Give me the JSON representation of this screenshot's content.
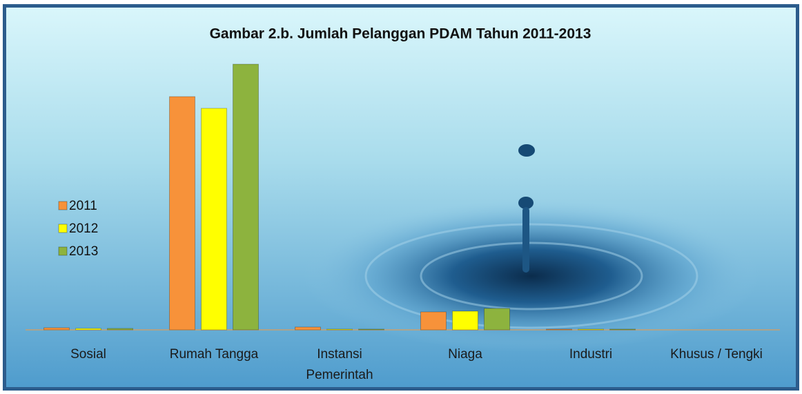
{
  "chart_data": {
    "type": "bar",
    "title": "Gambar 2.b. Jumlah Pelanggan PDAM Tahun 2011-2013",
    "categories": [
      "Sosial",
      "Rumah Tangga",
      "Instansi Pemerintah",
      "Niaga",
      "Industri",
      "Khusus / Tengki"
    ],
    "series": [
      {
        "name": "2011",
        "color": "#f7923a",
        "values": [
          3,
          338,
          4,
          26,
          1,
          0
        ]
      },
      {
        "name": "2012",
        "color": "#ffff00",
        "values": [
          2,
          321,
          1,
          27,
          1,
          0
        ]
      },
      {
        "name": "2013",
        "color": "#8db33e",
        "values": [
          2,
          385,
          1,
          31,
          1,
          0
        ]
      }
    ],
    "legend": "left"
  }
}
